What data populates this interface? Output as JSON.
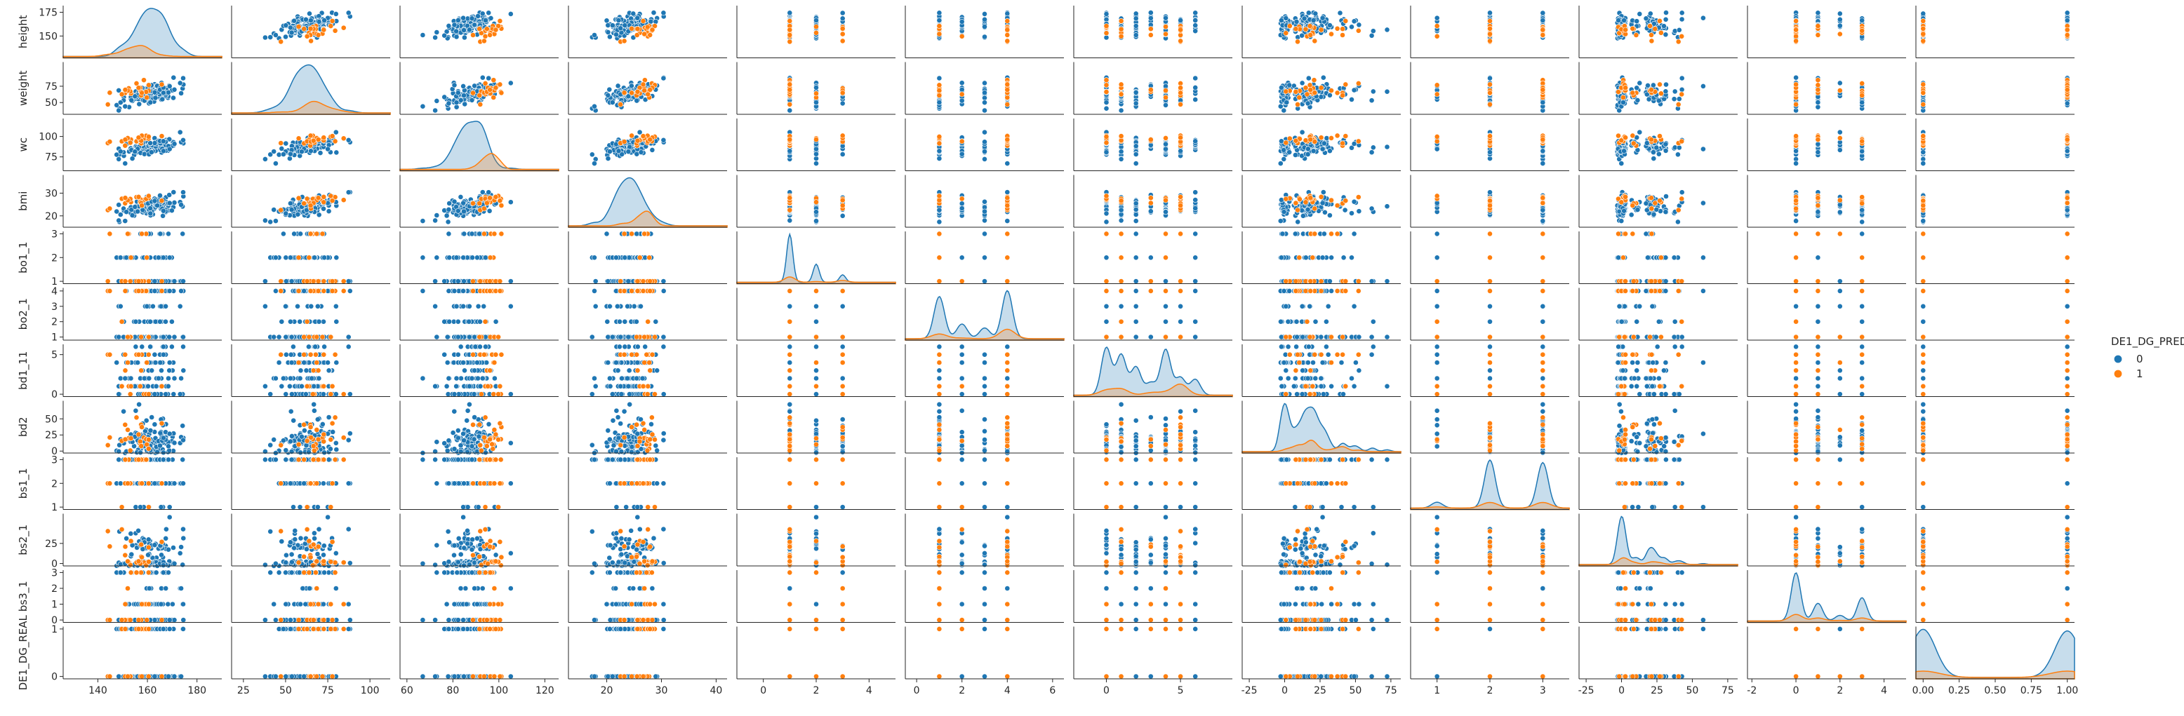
{
  "chart_data": {
    "type": "pairplot",
    "grid": false,
    "legend_placement": "right",
    "hue": "DE1_DG_PRED",
    "hue_levels": [
      {
        "label": "0",
        "color": "#1f77b4"
      },
      {
        "label": "1",
        "color": "#ff7f0e"
      }
    ],
    "variables": [
      {
        "name": "height",
        "range": [
          127,
          182
        ],
        "ticks": [
          150,
          175
        ],
        "xrange": [
          126,
          190
        ],
        "xticks": [
          140,
          160,
          180
        ],
        "dist": {
          "0": {
            "mu": 161,
            "sd": 9
          },
          "1": {
            "mu": 155,
            "sd": 8
          }
        },
        "kde_w": [
          0.82,
          0.18
        ],
        "kind": "cont"
      },
      {
        "name": "weight",
        "range": [
          32,
          112
        ],
        "ticks": [
          50,
          75
        ],
        "xrange": [
          18,
          112
        ],
        "xticks": [
          25,
          50,
          75,
          100
        ],
        "dist": {
          "0": {
            "mu": 62,
            "sd": 13
          },
          "1": {
            "mu": 67,
            "sd": 12
          }
        },
        "kde_w": [
          0.82,
          0.18
        ],
        "kind": "cont"
      },
      {
        "name": "wc",
        "range": [
          58,
          122
        ],
        "ticks": [
          75,
          100
        ],
        "xrange": [
          57,
          126
        ],
        "xticks": [
          60,
          80,
          100,
          120
        ],
        "dist": {
          "0": {
            "mu": 87,
            "sd": 9
          },
          "1": {
            "mu": 96,
            "sd": 9
          }
        },
        "kde_w": [
          0.82,
          0.18
        ],
        "kind": "cont"
      },
      {
        "name": "bmi",
        "range": [
          15,
          38
        ],
        "ticks": [
          20,
          30
        ],
        "xrange": [
          13,
          42
        ],
        "xticks": [
          20,
          30,
          40
        ],
        "dist": {
          "0": {
            "mu": 24,
            "sd": 4
          },
          "1": {
            "mu": 27,
            "sd": 4
          }
        },
        "kde_w": [
          0.82,
          0.18
        ],
        "kind": "cont"
      },
      {
        "name": "bo1_1",
        "range": [
          0.9,
          3.1
        ],
        "ticks": [
          1,
          2,
          3
        ],
        "xrange": [
          -1,
          5
        ],
        "xticks": [
          0,
          2,
          4
        ],
        "levels": [
          1,
          2,
          3
        ],
        "probs": [
          0.7,
          0.2,
          0.1
        ],
        "kind": "disc"
      },
      {
        "name": "bo2_1",
        "range": [
          0.8,
          4.2
        ],
        "ticks": [
          1,
          2,
          3,
          4
        ],
        "xrange": [
          -0.5,
          6.5
        ],
        "xticks": [
          0,
          2,
          4,
          6
        ],
        "levels": [
          1,
          2,
          3,
          4
        ],
        "probs": [
          0.35,
          0.15,
          0.1,
          0.4
        ],
        "kind": "disc"
      },
      {
        "name": "bd1_11",
        "range": [
          -0.3,
          6.3
        ],
        "ticks": [
          0,
          5
        ],
        "xrange": [
          -2.2,
          8.5
        ],
        "xticks": [
          0,
          5
        ],
        "levels": [
          0,
          1,
          2,
          3,
          4,
          5,
          6
        ],
        "probs": [
          0.2,
          0.25,
          0.1,
          0.1,
          0.15,
          0.15,
          0.05
        ],
        "kind": "disc"
      },
      {
        "name": "bd2",
        "range": [
          -3,
          78
        ],
        "ticks": [
          0,
          25,
          50
        ],
        "xrange": [
          -30,
          82
        ],
        "xticks": [
          -25,
          0,
          25,
          50,
          75
        ],
        "levels": [
          0,
          5,
          10,
          15,
          20,
          25,
          30,
          40,
          50,
          60,
          70
        ],
        "probs": [
          0.22,
          0.05,
          0.08,
          0.12,
          0.2,
          0.1,
          0.08,
          0.06,
          0.04,
          0.03,
          0.02
        ],
        "kind": "disc"
      },
      {
        "name": "bs1_1",
        "range": [
          0.9,
          3.1
        ],
        "ticks": [
          1,
          2,
          3
        ],
        "xrange": [
          0.5,
          3.5
        ],
        "xticks": [
          1,
          2,
          3
        ],
        "levels": [
          1,
          2,
          3
        ],
        "probs": [
          0.04,
          0.46,
          0.5
        ],
        "kind": "disc"
      },
      {
        "name": "bs2_1",
        "range": [
          -3,
          62
        ],
        "ticks": [
          0,
          25
        ],
        "xrange": [
          -30,
          82
        ],
        "xticks": [
          -25,
          0,
          25,
          50,
          75
        ],
        "levels": [
          0,
          10,
          20,
          25,
          30,
          40,
          60
        ],
        "probs": [
          0.5,
          0.1,
          0.2,
          0.08,
          0.07,
          0.03,
          0.02
        ],
        "kind": "disc"
      },
      {
        "name": "bs3_1",
        "range": [
          -0.15,
          3.15
        ],
        "ticks": [
          0,
          1,
          2,
          3
        ],
        "xrange": [
          -2.2,
          5
        ],
        "xticks": [
          -2,
          0,
          2,
          4
        ],
        "levels": [
          0,
          1,
          2,
          3
        ],
        "probs": [
          0.55,
          0.15,
          0.05,
          0.25
        ],
        "kind": "disc"
      },
      {
        "name": "DE1_DG_REAL",
        "range": [
          -0.05,
          1.05
        ],
        "ticks": [
          0,
          1
        ],
        "xrange": [
          -0.05,
          1.05
        ],
        "xticks": [
          0.0,
          0.25,
          0.5,
          0.75,
          1.0
        ],
        "levels": [
          0,
          1
        ],
        "probs": [
          0.5,
          0.5
        ],
        "kind": "disc"
      }
    ],
    "xtick_format": {
      "DE1_DG_REAL": "fixed2"
    }
  }
}
